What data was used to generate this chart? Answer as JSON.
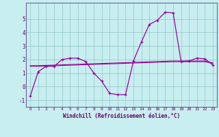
{
  "xlabel": "Windchill (Refroidissement éolien,°C)",
  "background_color": "#c8eef0",
  "grid_color": "#99cccc",
  "line_color": "#990099",
  "x_hours": [
    0,
    1,
    2,
    3,
    4,
    5,
    6,
    7,
    8,
    9,
    10,
    11,
    12,
    13,
    14,
    15,
    16,
    17,
    18,
    19,
    20,
    21,
    22,
    23
  ],
  "windchill": [
    -0.7,
    1.1,
    1.5,
    1.5,
    2.0,
    2.1,
    2.1,
    1.85,
    1.0,
    0.4,
    -0.5,
    -0.6,
    -0.6,
    1.9,
    3.3,
    4.6,
    4.9,
    5.5,
    5.45,
    1.85,
    1.9,
    2.1,
    2.05,
    1.6
  ],
  "temp_line1": [
    1.5,
    1.5,
    1.52,
    1.54,
    1.56,
    1.58,
    1.6,
    1.62,
    1.64,
    1.66,
    1.68,
    1.7,
    1.72,
    1.74,
    1.76,
    1.78,
    1.8,
    1.82,
    1.84,
    1.84,
    1.84,
    1.84,
    1.84,
    1.72
  ],
  "temp_line2": [
    1.55,
    1.55,
    1.57,
    1.59,
    1.61,
    1.63,
    1.65,
    1.67,
    1.69,
    1.71,
    1.73,
    1.75,
    1.77,
    1.79,
    1.81,
    1.83,
    1.85,
    1.87,
    1.89,
    1.89,
    1.89,
    1.89,
    1.89,
    1.76
  ],
  "ylim": [
    -1.5,
    6.2
  ],
  "yticks": [
    -1,
    0,
    1,
    2,
    3,
    4,
    5
  ],
  "xticks": [
    0,
    1,
    2,
    3,
    4,
    5,
    6,
    7,
    8,
    9,
    10,
    11,
    12,
    13,
    14,
    15,
    16,
    17,
    18,
    19,
    20,
    21,
    22,
    23
  ],
  "spine_color": "#666699",
  "tick_color": "#660066",
  "label_color": "#660066"
}
